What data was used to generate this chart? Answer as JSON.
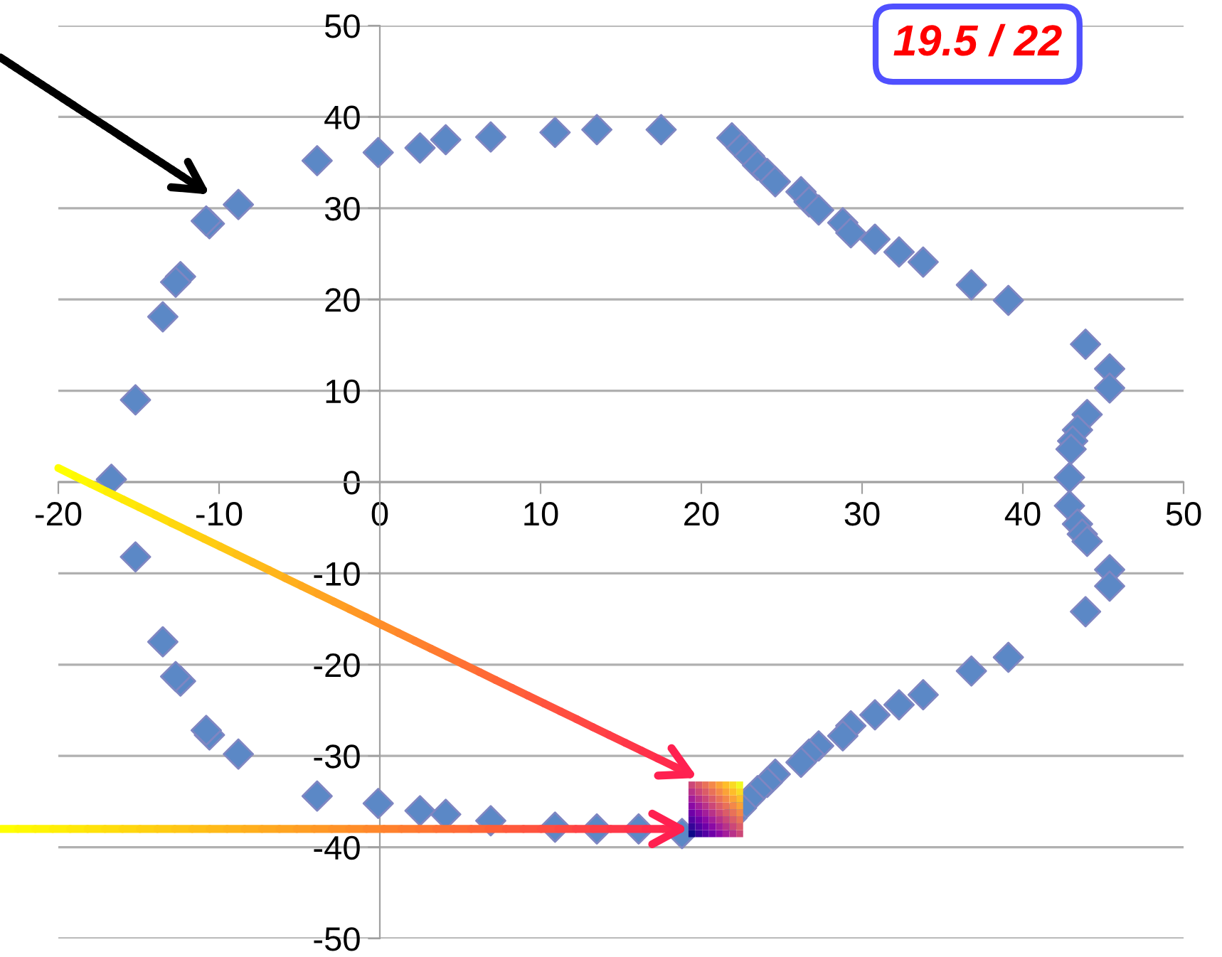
{
  "chart_data": {
    "type": "scatter",
    "x": [
      -8.8,
      -10.6,
      -10.8,
      -12.4,
      -12.7,
      -13.5,
      -15.2,
      -16.7,
      -3.9,
      -0.1,
      2.5,
      4.1,
      6.9,
      10.9,
      13.5,
      17.5,
      21.9,
      22.5,
      23.0,
      23.5,
      24.1,
      24.6,
      26.2,
      26.7,
      27.3,
      28.8,
      29.3,
      30.8,
      32.3,
      33.8,
      36.8,
      39.1,
      43.9,
      45.4,
      45.4,
      44.0,
      43.4,
      43.1,
      43.0,
      42.9,
      42.9,
      43.4,
      43.7,
      44.0,
      45.4,
      45.4,
      43.9,
      39.1,
      36.8,
      33.8,
      32.3,
      30.8,
      29.3,
      28.8,
      27.3,
      26.7,
      26.2,
      24.6,
      24.1,
      23.5,
      23.0,
      22.5,
      21.9,
      18.8,
      16.1,
      13.5,
      10.9,
      6.9,
      4.1,
      2.5,
      -0.1,
      -3.9,
      -8.8,
      -10.6,
      -10.8,
      -12.4,
      -12.7,
      -13.5,
      -15.2
    ],
    "series": [
      {
        "color": "#5b88c6",
        "values": [
          30.4,
          28.3,
          28.6,
          22.5,
          21.9,
          18.1,
          9.0,
          0.3,
          35.2,
          36.1,
          36.6,
          37.5,
          37.8,
          38.3,
          38.6,
          38.6,
          37.7,
          36.6,
          35.7,
          34.7,
          33.8,
          32.9,
          31.8,
          30.7,
          29.8,
          28.4,
          27.3,
          26.6,
          25.2,
          24.1,
          21.6,
          19.9,
          15.1,
          12.4,
          10.3,
          7.4,
          5.7,
          4.5,
          3.6,
          0.5,
          -2.6,
          -4.6,
          -5.7,
          -6.5,
          -9.6,
          -11.4,
          -14.2,
          -19.2,
          -20.7,
          -23.3,
          -24.4,
          -25.5,
          -26.7,
          -27.8,
          -28.9,
          -29.8,
          -30.7,
          -32.0,
          -32.9,
          -33.8,
          -34.7,
          -35.7,
          -36.8,
          -38.5,
          -38.0,
          -38.0,
          -37.8,
          -37.1,
          -36.4,
          -36.0,
          -35.2,
          -34.4,
          -29.8,
          -27.7,
          -27.2,
          -21.8,
          -21.3,
          -17.5,
          -8.2
        ]
      }
    ],
    "marker": "diamond",
    "xlim": [
      -20,
      50
    ],
    "xticks": [
      -20,
      -10,
      0,
      10,
      20,
      30,
      40,
      50
    ],
    "ylim": [
      -50,
      50
    ],
    "yticks": [
      -50,
      -40,
      -30,
      -20,
      -10,
      0,
      10,
      20,
      30,
      40,
      50
    ],
    "grid": "y",
    "annotations": [
      "19.5 / 22"
    ]
  }
}
